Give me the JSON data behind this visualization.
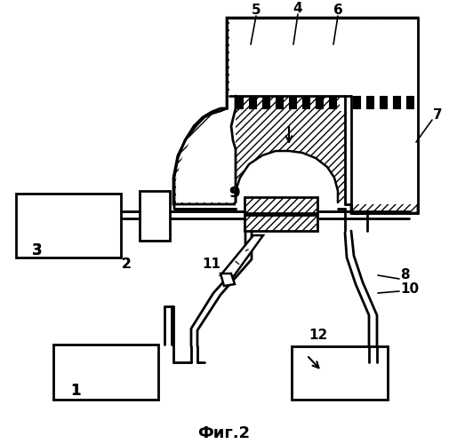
{
  "title": "Фиг.2",
  "bg_color": "#ffffff",
  "fig_width": 5.05,
  "fig_height": 5.0,
  "dpi": 100
}
